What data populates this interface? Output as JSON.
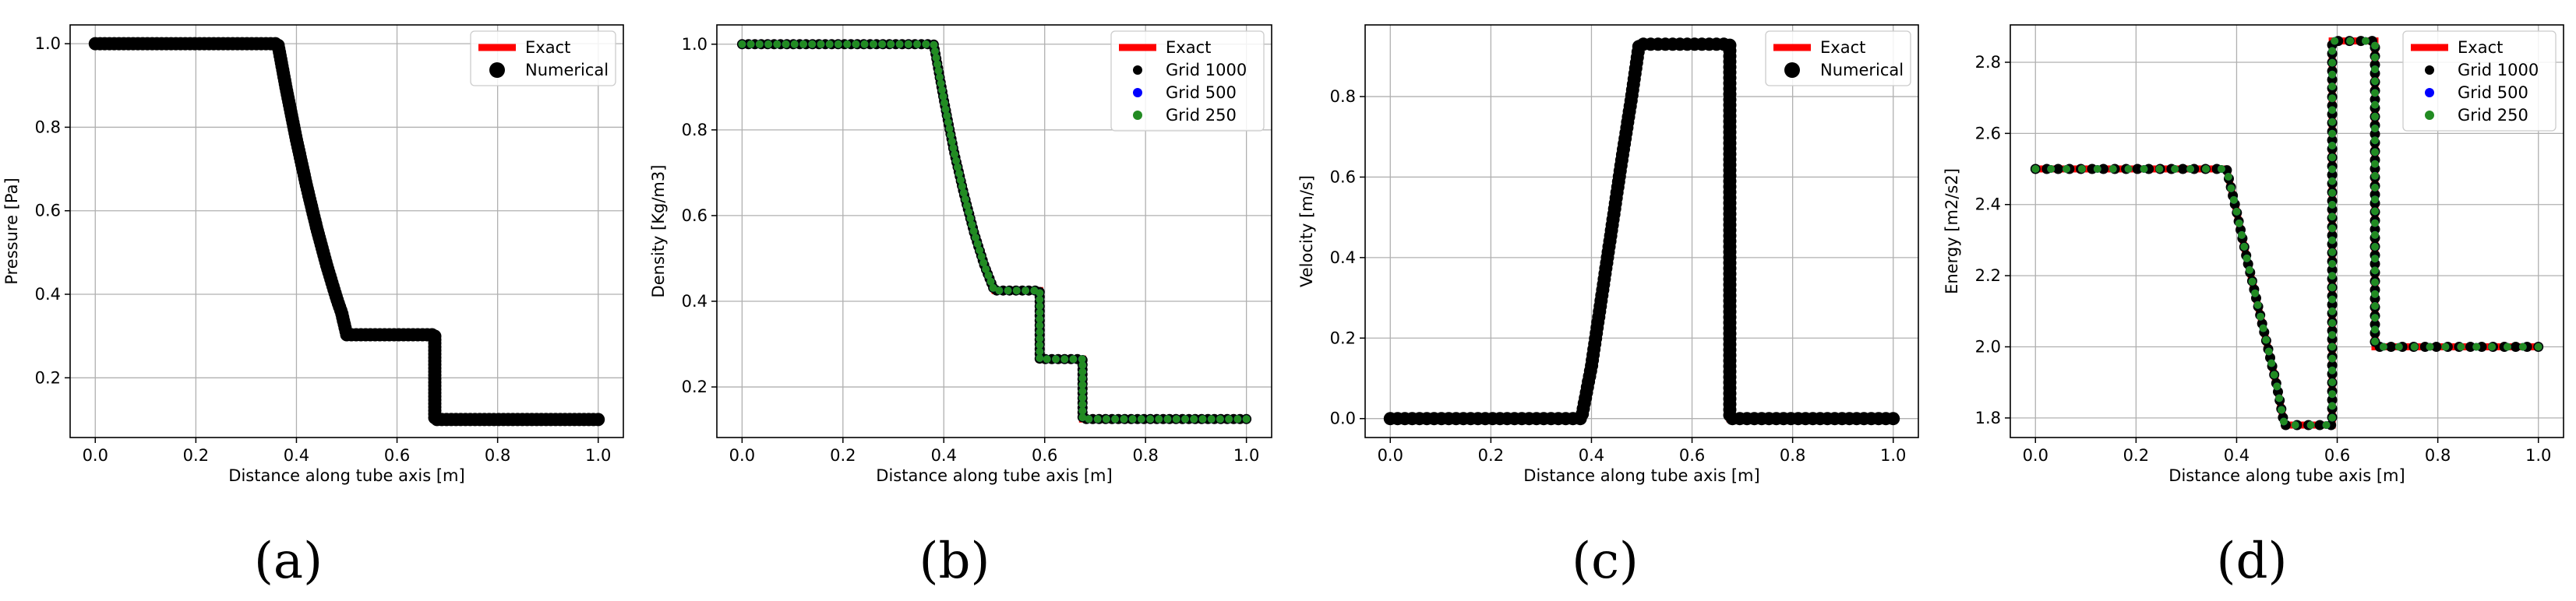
{
  "chart_data": [
    {
      "type": "line",
      "caption": "(a)",
      "xlabel": "Distance along tube axis [m]",
      "ylabel": "Pressure [Pa]",
      "xlim": [
        -0.05,
        1.05
      ],
      "ylim": [
        0.057,
        1.045
      ],
      "xticks": [
        0.0,
        0.2,
        0.4,
        0.6,
        0.8,
        1.0
      ],
      "xtick_labels": [
        "0.0",
        "0.2",
        "0.4",
        "0.6",
        "0.8",
        "1.0"
      ],
      "yticks": [
        0.2,
        0.4,
        0.6,
        0.8,
        1.0
      ],
      "ytick_labels": [
        "0.2",
        "0.4",
        "0.6",
        "0.8",
        "1.0"
      ],
      "grid": true,
      "legend_position": "top-right",
      "series": [
        {
          "name": "Exact",
          "kind": "line",
          "color": "#ff0000",
          "x": [
            0.0,
            0.363,
            0.37,
            0.38,
            0.39,
            0.4,
            0.41,
            0.42,
            0.43,
            0.44,
            0.45,
            0.46,
            0.47,
            0.48,
            0.49,
            0.5,
            0.675,
            0.675,
            1.0
          ],
          "y": [
            1.0,
            1.0,
            0.955,
            0.89,
            0.83,
            0.77,
            0.715,
            0.66,
            0.61,
            0.56,
            0.515,
            0.47,
            0.43,
            0.39,
            0.355,
            0.303,
            0.303,
            0.1,
            0.1
          ]
        },
        {
          "name": "Numerical",
          "kind": "markers",
          "color": "#000000",
          "n": 200,
          "x": [
            0.0,
            0.363,
            0.37,
            0.38,
            0.39,
            0.4,
            0.41,
            0.42,
            0.43,
            0.44,
            0.45,
            0.46,
            0.47,
            0.48,
            0.49,
            0.5,
            0.675,
            0.675,
            1.0
          ],
          "y": [
            1.0,
            1.0,
            0.955,
            0.89,
            0.83,
            0.77,
            0.715,
            0.66,
            0.61,
            0.56,
            0.515,
            0.47,
            0.43,
            0.39,
            0.355,
            0.303,
            0.303,
            0.1,
            0.1
          ]
        }
      ]
    },
    {
      "type": "line",
      "caption": "(b)",
      "xlabel": "Distance along tube axis [m]",
      "ylabel": "Density [Kg/m3]",
      "xlim": [
        -0.05,
        1.05
      ],
      "ylim": [
        0.082,
        1.045
      ],
      "xticks": [
        0.0,
        0.2,
        0.4,
        0.6,
        0.8,
        1.0
      ],
      "xtick_labels": [
        "0.0",
        "0.2",
        "0.4",
        "0.6",
        "0.8",
        "1.0"
      ],
      "yticks": [
        0.2,
        0.4,
        0.6,
        0.8,
        1.0
      ],
      "ytick_labels": [
        "0.2",
        "0.4",
        "0.6",
        "0.8",
        "1.0"
      ],
      "grid": true,
      "legend_position": "top-right",
      "series": [
        {
          "name": "Exact",
          "kind": "line",
          "color": "#ff0000",
          "x": [
            0.0,
            0.38,
            0.4,
            0.42,
            0.44,
            0.46,
            0.48,
            0.5,
            0.59,
            0.59,
            0.675,
            0.675,
            1.0
          ],
          "y": [
            1.0,
            1.0,
            0.87,
            0.75,
            0.65,
            0.56,
            0.485,
            0.425,
            0.425,
            0.265,
            0.265,
            0.125,
            0.125
          ]
        },
        {
          "name": "Grid 1000",
          "kind": "markers",
          "color": "#000000",
          "n": 150,
          "x": [
            0.0,
            0.38,
            0.4,
            0.42,
            0.44,
            0.46,
            0.48,
            0.5,
            0.59,
            0.59,
            0.675,
            0.675,
            1.0
          ],
          "y": [
            1.0,
            1.0,
            0.87,
            0.75,
            0.65,
            0.56,
            0.485,
            0.425,
            0.425,
            0.265,
            0.265,
            0.125,
            0.125
          ]
        },
        {
          "name": "Grid 500",
          "kind": "markers",
          "color": "#0000ff",
          "n": 110,
          "x": [
            0.0,
            0.38,
            0.4,
            0.42,
            0.44,
            0.46,
            0.48,
            0.5,
            0.59,
            0.59,
            0.675,
            0.675,
            1.0
          ],
          "y": [
            1.0,
            1.0,
            0.87,
            0.75,
            0.65,
            0.56,
            0.485,
            0.425,
            0.425,
            0.265,
            0.265,
            0.125,
            0.125
          ]
        },
        {
          "name": "Grid 250",
          "kind": "markers",
          "color": "#228b22",
          "n": 110,
          "x": [
            0.0,
            0.38,
            0.4,
            0.42,
            0.44,
            0.46,
            0.48,
            0.5,
            0.59,
            0.59,
            0.675,
            0.675,
            1.0
          ],
          "y": [
            1.0,
            1.0,
            0.87,
            0.75,
            0.65,
            0.56,
            0.485,
            0.425,
            0.425,
            0.265,
            0.265,
            0.125,
            0.125
          ]
        }
      ]
    },
    {
      "type": "line",
      "caption": "(c)",
      "xlabel": "Distance along tube axis [m]",
      "ylabel": "Velocity [m/s]",
      "xlim": [
        -0.05,
        1.05
      ],
      "ylim": [
        -0.047,
        0.978
      ],
      "xticks": [
        0.0,
        0.2,
        0.4,
        0.6,
        0.8,
        1.0
      ],
      "xtick_labels": [
        "0.0",
        "0.2",
        "0.4",
        "0.6",
        "0.8",
        "1.0"
      ],
      "yticks": [
        0.0,
        0.2,
        0.4,
        0.6,
        0.8
      ],
      "ytick_labels": [
        "0.0",
        "0.2",
        "0.4",
        "0.6",
        "0.8"
      ],
      "grid": true,
      "legend_position": "top-right",
      "series": [
        {
          "name": "Exact",
          "kind": "line",
          "color": "#ff0000",
          "x": [
            0.0,
            0.38,
            0.4,
            0.42,
            0.44,
            0.46,
            0.48,
            0.495,
            0.675,
            0.675,
            1.0
          ],
          "y": [
            0.0,
            0.0,
            0.13,
            0.3,
            0.47,
            0.64,
            0.8,
            0.93,
            0.93,
            0.0,
            0.0
          ]
        },
        {
          "name": "Numerical",
          "kind": "markers",
          "color": "#000000",
          "n": 200,
          "x": [
            0.0,
            0.38,
            0.4,
            0.42,
            0.44,
            0.46,
            0.48,
            0.495,
            0.675,
            0.675,
            1.0
          ],
          "y": [
            0.0,
            0.0,
            0.13,
            0.3,
            0.47,
            0.64,
            0.8,
            0.93,
            0.93,
            0.0,
            0.0
          ]
        }
      ]
    },
    {
      "type": "line",
      "caption": "(d)",
      "xlabel": "Distance along tube axis [m]",
      "ylabel": "Energy [m2/s2]",
      "xlim": [
        -0.05,
        1.05
      ],
      "ylim": [
        1.745,
        2.905
      ],
      "xticks": [
        0.0,
        0.2,
        0.4,
        0.6,
        0.8,
        1.0
      ],
      "xtick_labels": [
        "0.0",
        "0.2",
        "0.4",
        "0.6",
        "0.8",
        "1.0"
      ],
      "yticks": [
        1.8,
        2.0,
        2.2,
        2.4,
        2.6,
        2.8
      ],
      "ytick_labels": [
        "1.8",
        "2.0",
        "2.2",
        "2.4",
        "2.6",
        "2.8"
      ],
      "grid": true,
      "legend_position": "top-right",
      "series": [
        {
          "name": "Exact",
          "kind": "line",
          "color": "#ff0000",
          "x": [
            0.0,
            0.38,
            0.4,
            0.42,
            0.44,
            0.46,
            0.48,
            0.495,
            0.59,
            0.59,
            0.675,
            0.675,
            1.0
          ],
          "y": [
            2.5,
            2.5,
            2.38,
            2.25,
            2.13,
            2.01,
            1.89,
            1.78,
            1.78,
            2.86,
            2.86,
            2.0,
            2.0
          ]
        },
        {
          "name": "Grid 1000",
          "kind": "markers",
          "color": "#000000",
          "n": 150,
          "x": [
            0.0,
            0.38,
            0.4,
            0.42,
            0.44,
            0.46,
            0.48,
            0.495,
            0.59,
            0.59,
            0.675,
            0.675,
            1.0
          ],
          "y": [
            2.5,
            2.5,
            2.38,
            2.25,
            2.13,
            2.01,
            1.89,
            1.78,
            1.78,
            2.86,
            2.86,
            2.0,
            2.0
          ]
        },
        {
          "name": "Grid 500",
          "kind": "markers",
          "color": "#0000ff",
          "n": 110,
          "x": [
            0.0,
            0.38,
            0.4,
            0.42,
            0.44,
            0.46,
            0.48,
            0.495,
            0.59,
            0.59,
            0.675,
            0.675,
            1.0
          ],
          "y": [
            2.5,
            2.5,
            2.38,
            2.25,
            2.13,
            2.01,
            1.89,
            1.78,
            1.78,
            2.86,
            2.86,
            2.0,
            2.0
          ]
        },
        {
          "name": "Grid 250",
          "kind": "markers",
          "color": "#228b22",
          "n": 110,
          "x": [
            0.0,
            0.38,
            0.4,
            0.42,
            0.44,
            0.46,
            0.48,
            0.495,
            0.59,
            0.59,
            0.675,
            0.675,
            1.0
          ],
          "y": [
            2.5,
            2.5,
            2.38,
            2.25,
            2.13,
            2.01,
            1.89,
            1.78,
            1.78,
            2.86,
            2.86,
            2.0,
            2.0
          ]
        }
      ]
    }
  ]
}
